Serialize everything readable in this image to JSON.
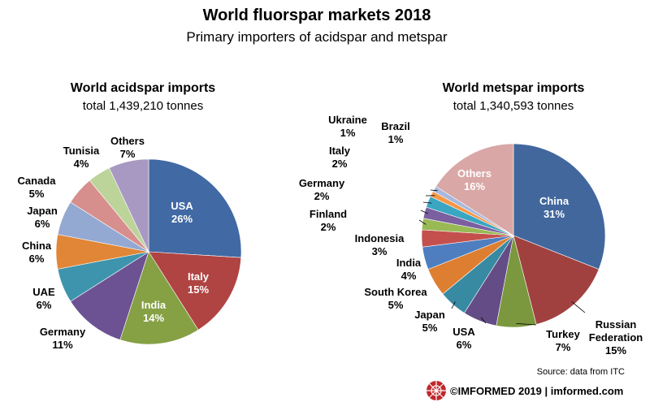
{
  "header": {
    "title": "World fluorspar markets 2018",
    "subtitle": "Primary importers of acidspar and metspar"
  },
  "chart_data": [
    {
      "type": "pie",
      "title": "World acidspar imports",
      "subtitle": "total 1,439,210 tonnes",
      "slices": [
        {
          "label": "USA",
          "value": 26,
          "color": "#4169a4"
        },
        {
          "label": "Italy",
          "value": 15,
          "color": "#b04442"
        },
        {
          "label": "India",
          "value": 14,
          "color": "#86a044"
        },
        {
          "label": "Germany",
          "value": 11,
          "color": "#6c5293"
        },
        {
          "label": "UAE",
          "value": 6,
          "color": "#3e94ad"
        },
        {
          "label": "China",
          "value": 6,
          "color": "#e08636"
        },
        {
          "label": "Japan",
          "value": 6,
          "color": "#93a9d2"
        },
        {
          "label": "Canada",
          "value": 5,
          "color": "#d78f8d"
        },
        {
          "label": "Tunisia",
          "value": 4,
          "color": "#bcd39a"
        },
        {
          "label": "Others",
          "value": 7,
          "color": "#a899c2"
        }
      ]
    },
    {
      "type": "pie",
      "title": "World metspar imports",
      "subtitle": "total 1,340,593 tonnes",
      "slices": [
        {
          "label": "China",
          "value": 31,
          "color": "#41679d"
        },
        {
          "label": "Russian Federation",
          "value": 15,
          "color": "#a04140"
        },
        {
          "label": "Turkey",
          "value": 7,
          "color": "#7b983e"
        },
        {
          "label": "USA",
          "value": 6,
          "color": "#644d86"
        },
        {
          "label": "Japan",
          "value": 5,
          "color": "#378aa1"
        },
        {
          "label": "South Korea",
          "value": 5,
          "color": "#de7e30"
        },
        {
          "label": "India",
          "value": 4,
          "color": "#4e7ec0"
        },
        {
          "label": "Indonesia",
          "value": 3,
          "color": "#c4504d"
        },
        {
          "label": "Finland",
          "value": 2,
          "color": "#98b954"
        },
        {
          "label": "Germany",
          "value": 2,
          "color": "#7b5fa0"
        },
        {
          "label": "Italy",
          "value": 2,
          "color": "#3aa6c1"
        },
        {
          "label": "Ukraine",
          "value": 1,
          "color": "#f79646"
        },
        {
          "label": "Brazil",
          "value": 1,
          "color": "#a6b8dc"
        },
        {
          "label": "Others",
          "value": 16,
          "color": "#d9a7a6"
        }
      ]
    }
  ],
  "footer": {
    "source": "Source: data from ITC",
    "brand": "©IMFORMED  2019  | imformed.com"
  }
}
